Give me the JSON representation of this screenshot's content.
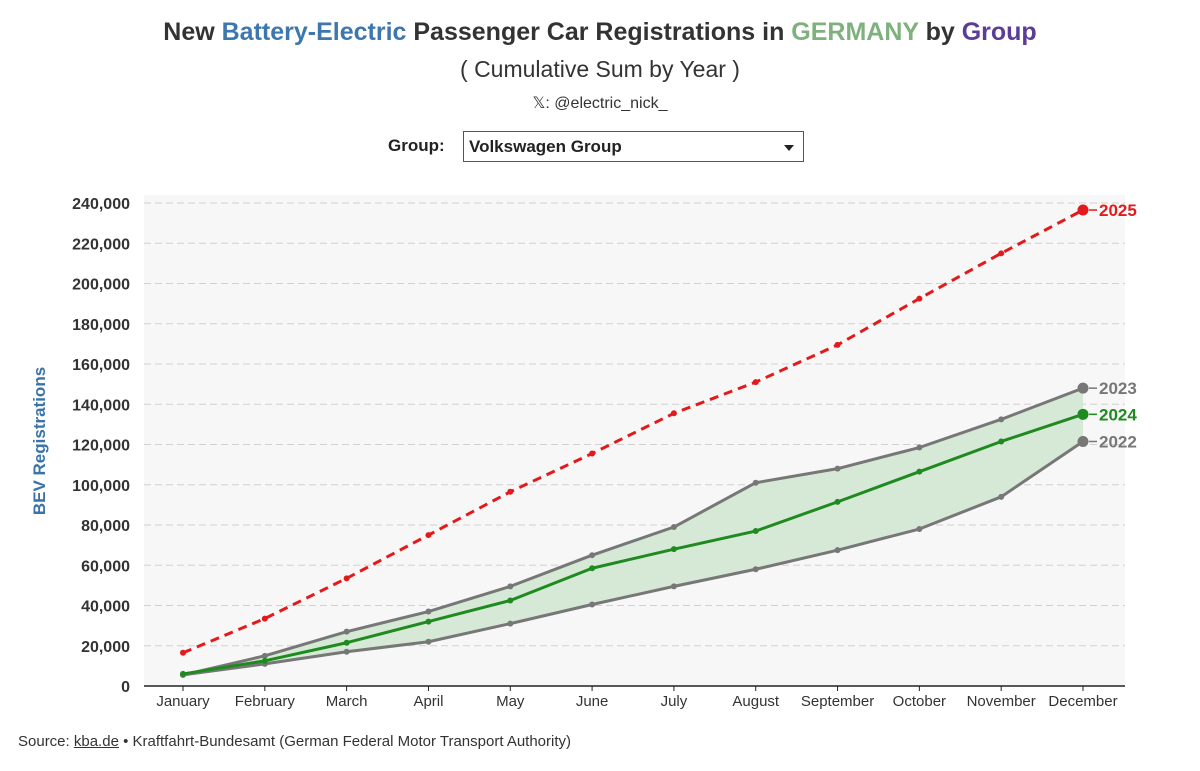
{
  "header": {
    "title_parts": [
      {
        "text": "New ",
        "color": "#333333"
      },
      {
        "text": "Battery-Electric",
        "color": "#3d77ad"
      },
      {
        "text": " Passenger Car Registrations in ",
        "color": "#333333"
      },
      {
        "text": "GERMANY",
        "color": "#7fb17f"
      },
      {
        "text": " by ",
        "color": "#333333"
      },
      {
        "text": "Group",
        "color": "#5b3c96"
      }
    ],
    "subtitle": "( Cumulative Sum by Year )",
    "handle": "𝕏: @electric_nick_"
  },
  "controls": {
    "group_label": "Group:",
    "group_value": "Volkswagen Group"
  },
  "chart_data": {
    "type": "line",
    "title": "New Battery-Electric Passenger Car Registrations in GERMANY by Group",
    "subtitle": "( Cumulative Sum by Year )",
    "xlabel": "",
    "ylabel": "BEV Registrations",
    "ylim": [
      0,
      240000
    ],
    "yticks": [
      0,
      20000,
      40000,
      60000,
      80000,
      100000,
      120000,
      140000,
      160000,
      180000,
      200000,
      220000,
      240000
    ],
    "ytick_labels": [
      "0",
      "20,000",
      "40,000",
      "60,000",
      "80,000",
      "100,000",
      "120,000",
      "140,000",
      "160,000",
      "180,000",
      "200,000",
      "220,000",
      "240,000"
    ],
    "grid": true,
    "categories": [
      "January",
      "February",
      "March",
      "April",
      "May",
      "June",
      "July",
      "August",
      "September",
      "October",
      "November",
      "December"
    ],
    "shaded_band": {
      "between": [
        "2022",
        "2023"
      ],
      "color": "#d4e8d4"
    },
    "series": [
      {
        "name": "2025",
        "color": "#e31a1c",
        "style": "dashed",
        "values": [
          16500,
          33500,
          53500,
          75000,
          96500,
          115500,
          135500,
          151000,
          169500,
          192500,
          215000,
          236500
        ]
      },
      {
        "name": "2023",
        "color": "#777777",
        "style": "solid",
        "values": [
          5500,
          15000,
          27000,
          37000,
          49500,
          65000,
          79000,
          101000,
          108000,
          118500,
          132500,
          148000
        ]
      },
      {
        "name": "2024",
        "color": "#1f8a1f",
        "style": "solid",
        "values": [
          6000,
          12500,
          21500,
          32000,
          42500,
          58500,
          68000,
          77000,
          91500,
          106500,
          121500,
          135000
        ]
      },
      {
        "name": "2022",
        "color": "#777777",
        "style": "solid",
        "values": [
          5500,
          11000,
          17000,
          22000,
          31000,
          40500,
          49500,
          58000,
          67500,
          78000,
          94000,
          121500
        ]
      }
    ]
  },
  "footer": {
    "source_prefix": "Source: ",
    "source_link": "kba.de",
    "source_rest": " • Kraftfahrt-Bundesamt (German Federal Motor Transport Authority)"
  }
}
